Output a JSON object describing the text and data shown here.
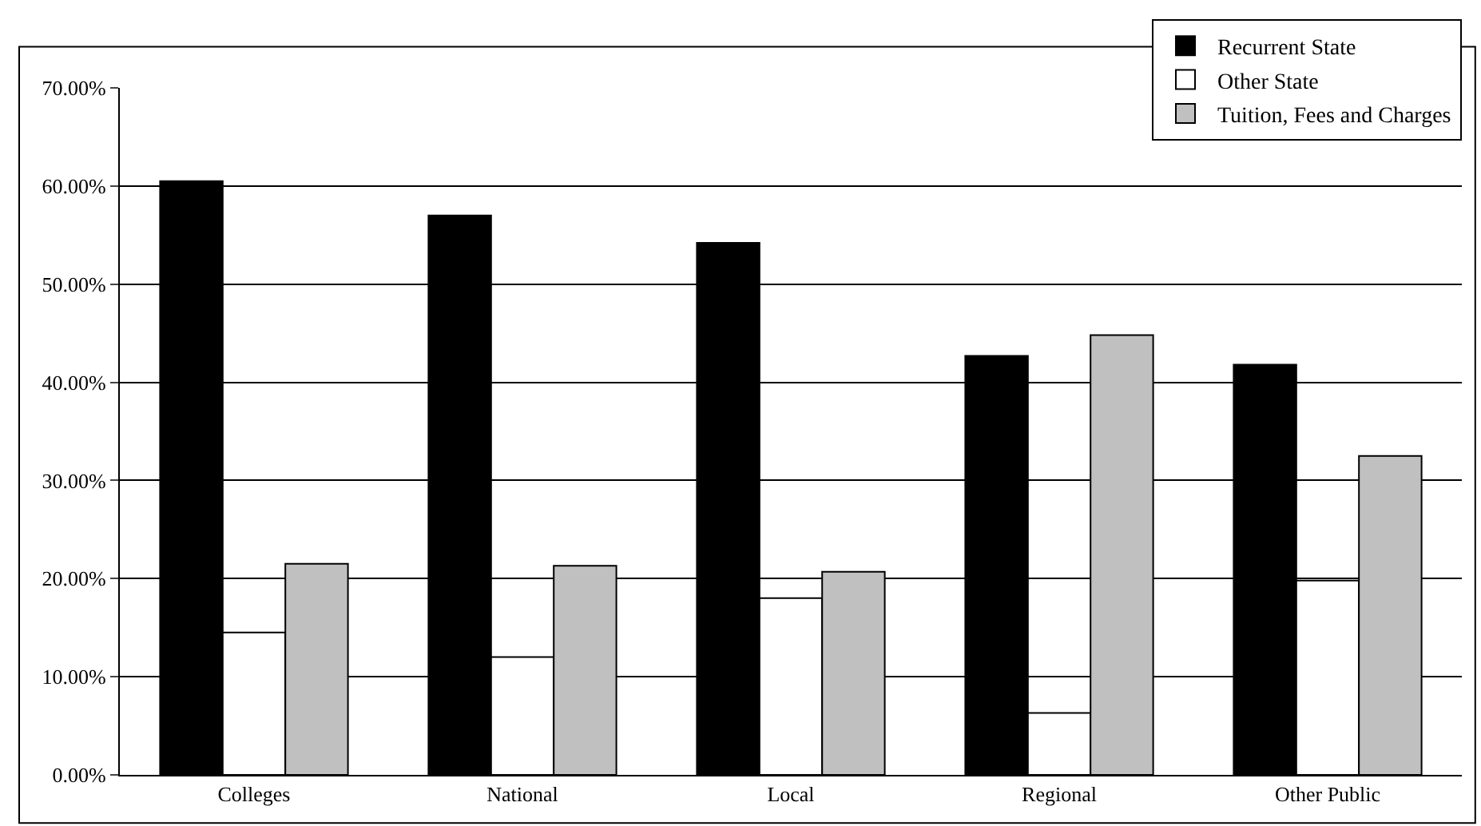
{
  "chart_data": {
    "type": "bar",
    "categories": [
      "Colleges",
      "National",
      "Local",
      "Regional",
      "Other Public"
    ],
    "series": [
      {
        "name": "Recurrent State",
        "color": "#000000",
        "values": [
          60.5,
          57,
          54.2,
          42.7,
          41.8
        ]
      },
      {
        "name": "Other State",
        "color": "#ffffff",
        "values": [
          14.5,
          12,
          18,
          6.3,
          19.8
        ]
      },
      {
        "name": "Tuition, Fees and Charges",
        "color": "#c0c0c0",
        "values": [
          21.5,
          21.3,
          20.7,
          44.8,
          32.5
        ]
      }
    ],
    "ylim": [
      0,
      70
    ],
    "yticks": [
      {
        "value": 0,
        "label": "0.00%"
      },
      {
        "value": 10,
        "label": "10.00%"
      },
      {
        "value": 20,
        "label": "20.00%"
      },
      {
        "value": 30,
        "label": "30.00%"
      },
      {
        "value": 40,
        "label": "40.00%"
      },
      {
        "value": 50,
        "label": "50.00%"
      },
      {
        "value": 60,
        "label": "60.00%"
      },
      {
        "value": 70,
        "label": "70.00%"
      }
    ],
    "grid": "y",
    "legend": "top right"
  }
}
